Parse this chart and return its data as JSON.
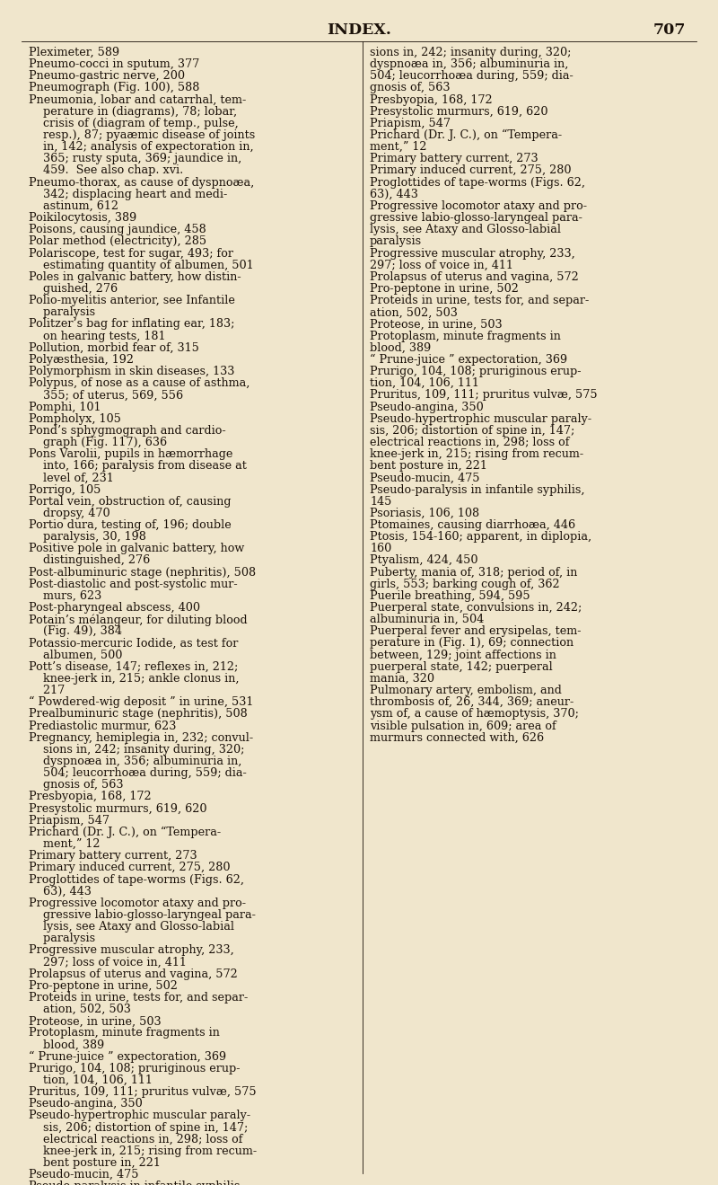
{
  "background_color": "#f0e6cc",
  "text_color": "#1a1008",
  "title": "INDEX.",
  "page_number": "707",
  "title_fontsize": 12.5,
  "body_fontsize": 9.2,
  "col1_lines": [
    "Pleximeter, 589",
    "Pneumo-cocci in sputum, 377",
    "Pneumo-gastric nerve, 200",
    "Pneumograph (Fig. 100), 588",
    "Pneumonia, lobar and catarrhal, tem-",
    "    perature in (diagrams), 78; lobar,",
    "    crisis of (diagram of temp., pulse,",
    "    resp.), 87; pyaæmic disease of joints",
    "    in, 142; analysis of expectoration in,",
    "    365; rusty sputa, 369; jaundice in,",
    "    459.  See also chap. xvi.",
    "Pneumo-thorax, as cause of dyspnoæa,",
    "    342; displacing heart and medi-",
    "    astinum, 612",
    "Poikilocytosis, 389",
    "Poisons, causing jaundice, 458",
    "Polar method (electricity), 285",
    "Polariscope, test for sugar, 493; for",
    "    estimating quantity of albumen, 501",
    "Poles in galvanic battery, how distin-",
    "    guished, 276",
    "Polio-myelitis anterior, see Infantile",
    "    paralysis",
    "Politzer’s bag for inflating ear, 183;",
    "    on hearing tests, 181",
    "Pollution, morbid fear of, 315",
    "Polyæsthesia, 192",
    "Polymorphism in skin diseases, 133",
    "Polypus, of nose as a cause of asthma,",
    "    355; of uterus, 569, 556",
    "Pomphi, 101",
    "Pompholyx, 105",
    "Pond’s sphygmograph and cardio-",
    "    graph (Fig. 117), 636",
    "Pons Varolii, pupils in hæmorrhage",
    "    into, 166; paralysis from disease at",
    "    level of, 231",
    "Porrigo, 105",
    "Portal vein, obstruction of, causing",
    "    dropsy, 470",
    "Portio dura, testing of, 196; double",
    "    paralysis, 30, 198",
    "Positive pole in galvanic battery, how",
    "    distinguished, 276",
    "Post-albuminuric stage (nephritis), 508",
    "Post-diastolic and post-systolic mur-",
    "    murs, 623",
    "Post-pharyngeal abscess, 400",
    "Potain’s mélangeur, for diluting blood",
    "    (Fig. 49), 384",
    "Potassio-mercuric Iodide, as test for",
    "    albumen, 500",
    "Pott’s disease, 147; reflexes in, 212;",
    "    knee-jerk in, 215; ankle clonus in,",
    "    217",
    "“ Powdered-wig deposit ” in urine, 531",
    "Prealbuminuric stage (nephritis), 508",
    "Prediastolic murmur, 623",
    "Pregnancy, hemiplegia in, 232; convul-",
    "    sions in, 242; insanity during, 320;",
    "    dyspnoæa in, 356; albuminuria in,",
    "    504; leucorrhoæa during, 559; dia-",
    "    gnosis of, 563",
    "Presbyopia, 168, 172",
    "Presystolic murmurs, 619, 620",
    "Priapism, 547",
    "Prichard (Dr. J. C.), on “Tempera-",
    "    ment,” 12",
    "Primary battery current, 273",
    "Primary induced current, 275, 280",
    "Proglottides of tape-worms (Figs. 62,",
    "    63), 443",
    "Progressive locomotor ataxy and pro-",
    "    gressive labio-glosso-laryngeal para-",
    "    lysis, see Ataxy and Glosso-labial",
    "    paralysis",
    "Progressive muscular atrophy, 233,",
    "    297; loss of voice in, 411",
    "Prolapsus of uterus and vagina, 572",
    "Pro-peptone in urine, 502",
    "Proteids in urine, tests for, and separ-",
    "    ation, 502, 503",
    "Proteose, in urine, 503",
    "Protoplasm, minute fragments in",
    "    blood, 389",
    "“ Prune-juice ” expectoration, 369",
    "Prurigo, 104, 108; pruriginous erup-",
    "    tion, 104, 106, 111",
    "Pruritus, 109, 111; pruritus vulvæ, 575",
    "Pseudo-angina, 350",
    "Pseudo-hypertrophic muscular paraly-",
    "    sis, 206; distortion of spine in, 147;",
    "    electrical reactions in, 298; loss of",
    "    knee-jerk in, 215; rising from recum-",
    "    bent posture in, 221",
    "Pseudo-mucin, 475",
    "Pseudo-paralysis in infantile syphilis,",
    "    145",
    "Psoriasis, 106, 108",
    "Ptomaines, causing diarrhoæa, 446",
    "Ptosis, 154-160; apparent, in diplopia,",
    "    160",
    "Ptyalism, 424, 450",
    "Puberty, mania of, 318; period of, in",
    "    girls, 553; barking cough of, 362",
    "Puerile breathing, 594, 595",
    "Puerperal state, convulsions in, 242;",
    "    albuminuria in, 504",
    "Puerperal fever and erysipelas, tem-",
    "    perature in (Fig. 1), 69; connection",
    "    between, 129; joint affections in",
    "    puerperal state, 142; puerperal",
    "    mania, 320",
    "Pulmonary artery, embolism, and",
    "    thrombosis of, 26, 344, 369; aneur-",
    "    ysm of, a cause of hæmoptysis, 370;",
    "    visible pulsation in, 609; area of",
    "    murmurs connected with, 626"
  ],
  "col2_lines": [
    "sions in, 242; insanity during, 320;",
    "dyspnoæa in, 356; albuminuria in,",
    "504; leucorrhoæa during, 559; dia-",
    "gnosis of, 563",
    "Presbyopia, 168, 172",
    "Presystolic murmurs, 619, 620",
    "Priapism, 547",
    "Prichard (Dr. J. C.), on “Tempera-",
    "ment,” 12",
    "Primary battery current, 273",
    "Primary induced current, 275, 280",
    "Proglottides of tape-worms (Figs. 62,",
    "63), 443",
    "Progressive locomotor ataxy and pro-",
    "gressive labio-glosso-laryngeal para-",
    "lysis, see Ataxy and Glosso-labial",
    "paralysis",
    "Progressive muscular atrophy, 233,",
    "297; loss of voice in, 411",
    "Prolapsus of uterus and vagina, 572",
    "Pro-peptone in urine, 502",
    "Proteids in urine, tests for, and separ-",
    "ation, 502, 503",
    "Proteose, in urine, 503",
    "Protoplasm, minute fragments in",
    "blood, 389",
    "“ Prune-juice ” expectoration, 369",
    "Prurigo, 104, 108; pruriginous erup-",
    "tion, 104, 106, 111",
    "Pruritus, 109, 111; pruritus vulvæ, 575",
    "Pseudo-angina, 350",
    "Pseudo-hypertrophic muscular paraly-",
    "sis, 206; distortion of spine in, 147;",
    "electrical reactions in, 298; loss of",
    "knee-jerk in, 215; rising from recum-",
    "bent posture in, 221",
    "Pseudo-mucin, 475",
    "Pseudo-paralysis in infantile syphilis,",
    "145",
    "Psoriasis, 106, 108",
    "Ptomaines, causing diarrhoæa, 446",
    "Ptosis, 154-160; apparent, in diplopia,",
    "160",
    "Ptyalism, 424, 450",
    "Puberty, mania of, 318; period of, in",
    "girls, 553; barking cough of, 362",
    "Puerile breathing, 594, 595",
    "Puerperal state, convulsions in, 242;",
    "albuminuria in, 504",
    "Puerperal fever and erysipelas, tem-",
    "perature in (Fig. 1), 69; connection",
    "between, 129; joint affections in",
    "puerperal state, 142; puerperal",
    "mania, 320",
    "Pulmonary artery, embolism, and",
    "thrombosis of, 26, 344, 369; aneur-",
    "ysm of, a cause of hæmoptysis, 370;",
    "visible pulsation in, 609; area of",
    "murmurs connected with, 626"
  ]
}
